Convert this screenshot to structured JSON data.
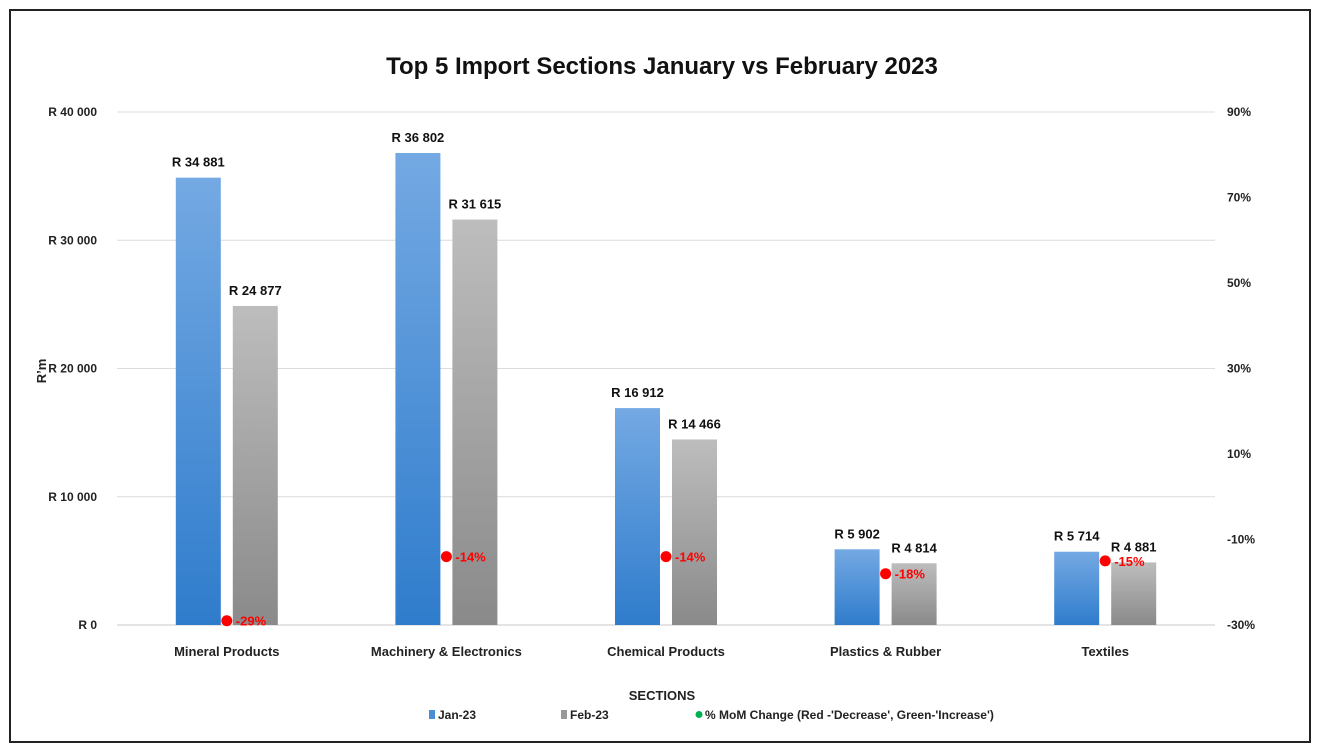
{
  "chart_data": {
    "type": "bar",
    "title": "Top 5 Import Sections January vs February 2023",
    "xlabel": "SECTIONS",
    "ylabel": "R’m",
    "categories": [
      "Mineral Products",
      "Machinery & Electronics",
      "Chemical Products",
      "Plastics & Rubber",
      "Textiles"
    ],
    "series": [
      {
        "name": "Jan-23",
        "values": [
          34881,
          36802,
          16912,
          5902,
          5714
        ],
        "labels": [
          "R 34 881",
          "R 36 802",
          "R 16 912",
          "R 5 902",
          "R 5 714"
        ],
        "color": "#4a8fd6"
      },
      {
        "name": "Feb-23",
        "values": [
          24877,
          31615,
          14466,
          4814,
          4881
        ],
        "labels": [
          "R 24 877",
          "R 31 615",
          "R 14 466",
          "R 4 814",
          "R 4 881"
        ],
        "color": "#999999"
      }
    ],
    "secondary_series": {
      "name": "% MoM Change (Red -'Decrease', Green-'Increase')",
      "values": [
        -29,
        -14,
        -14,
        -18,
        -15
      ],
      "labels": [
        "-29%",
        "-14%",
        "-14%",
        "-18%",
        "-15%"
      ],
      "color": "#ff0000",
      "legend_color": "#00b050"
    },
    "ylim": [
      0,
      40000
    ],
    "yticks": [
      0,
      10000,
      20000,
      30000,
      40000
    ],
    "ytick_labels": [
      "R 0",
      "R 10 000",
      "R 20 000",
      "R 30 000",
      "R 40 000"
    ],
    "y2lim": [
      -30,
      90
    ],
    "y2ticks": [
      -30,
      -10,
      10,
      30,
      50,
      70,
      90
    ],
    "y2tick_labels": [
      "-30%",
      "-10%",
      "10%",
      "30%",
      "50%",
      "70%",
      "90%"
    ],
    "grid": true,
    "legend": "bottom-center"
  }
}
